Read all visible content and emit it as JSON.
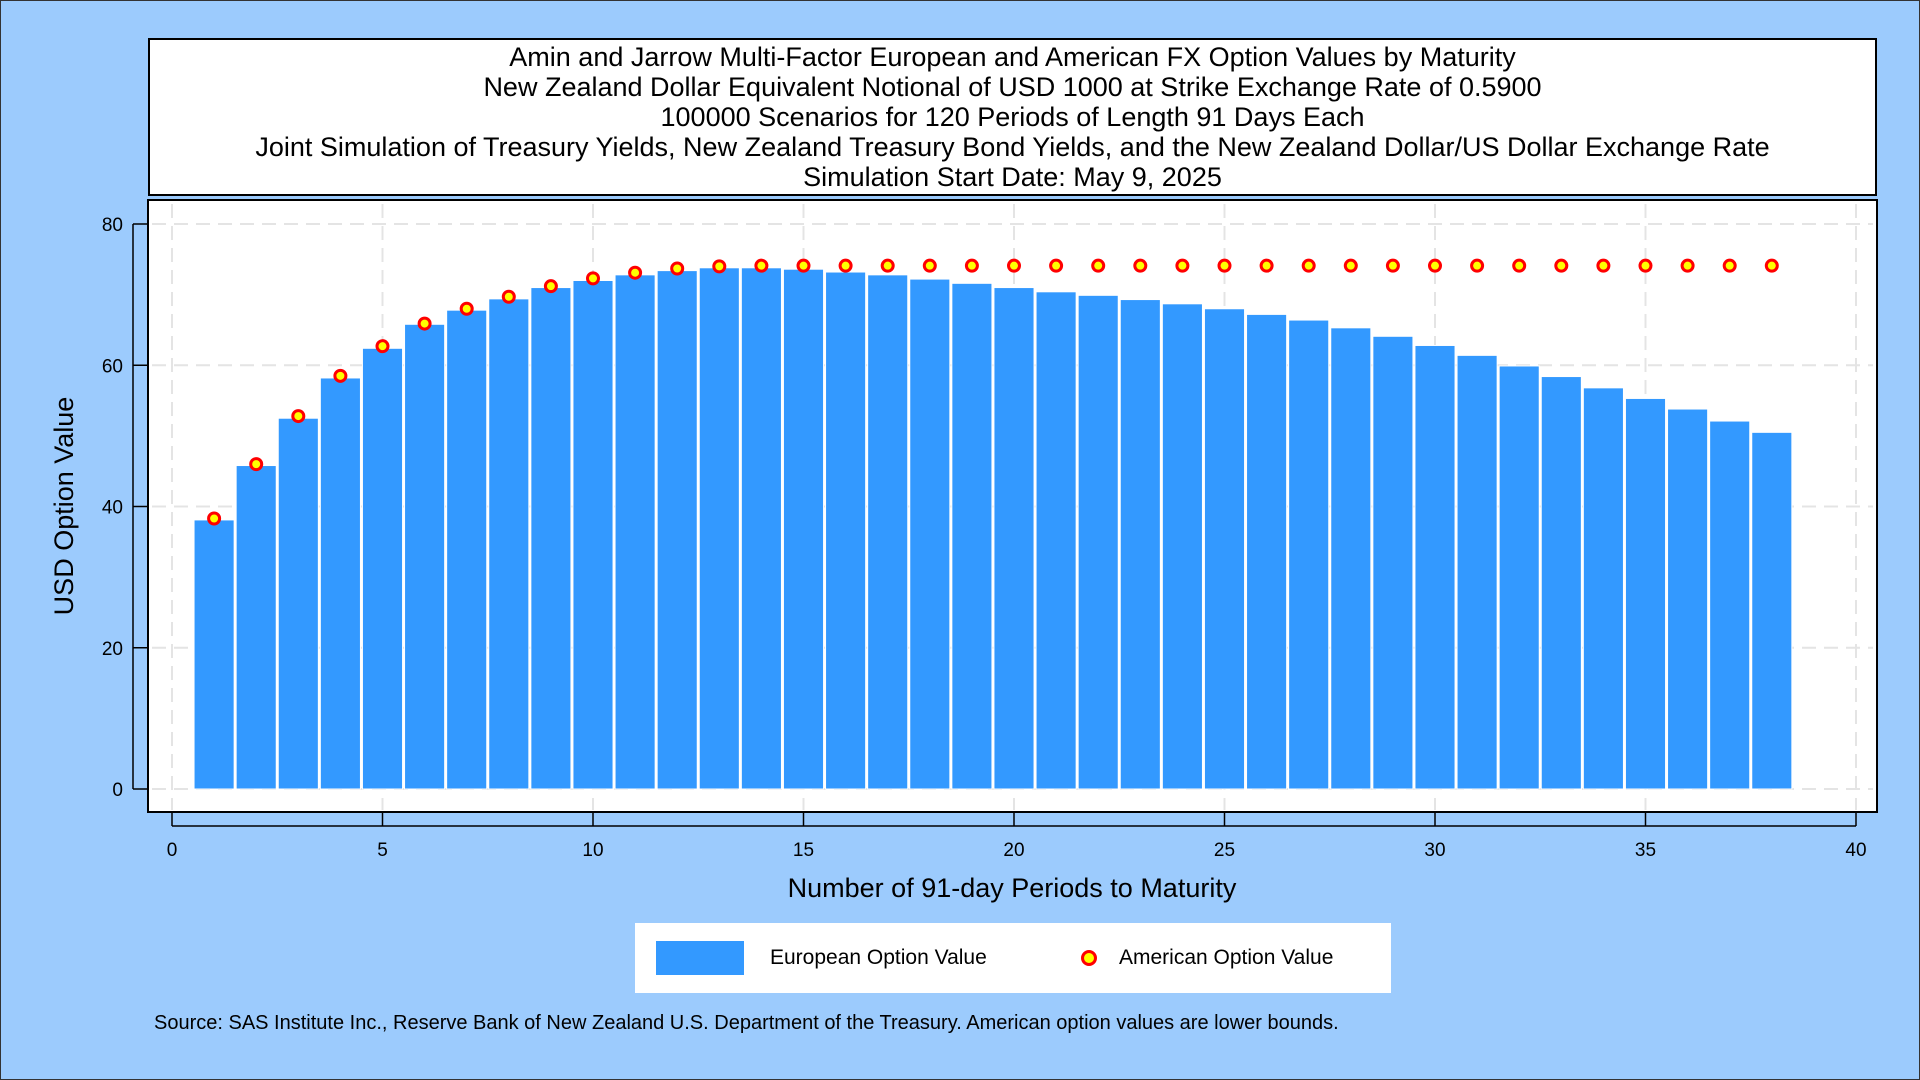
{
  "title_lines": [
    "Amin and Jarrow Multi-Factor European and American FX Option Values by Maturity",
    "New Zealand Dollar Equivalent Notional of USD 1000 at Strike Exchange Rate of  0.5900",
    "100000 Scenarios for 120 Periods of Length 91 Days Each",
    "Joint Simulation of Treasury Yields, New Zealand Treasury Bond Yields, and the New Zealand Dollar/US Dollar Exchange Rate",
    "Simulation Start Date: May 9, 2025"
  ],
  "source_note": "Source: SAS Institute Inc., Reserve Bank of New Zealand U.S. Department of the Treasury. American option values are lower bounds.",
  "legend": {
    "european": "European Option Value",
    "american": "American Option Value"
  },
  "colors": {
    "background": "#9ccbfd",
    "bar": "#3399ff",
    "marker_fill": "#ffff00",
    "marker_edge": "#ff0000"
  },
  "chart_data": {
    "type": "bar",
    "xlabel": "Number of 91-day Periods to Maturity",
    "ylabel": "USD Option Value",
    "xlim": [
      0,
      40
    ],
    "ylim": [
      0,
      80
    ],
    "xticks": [
      0,
      5,
      10,
      15,
      20,
      25,
      30,
      35,
      40
    ],
    "yticks": [
      0,
      20,
      40,
      60,
      80
    ],
    "grid": true,
    "legend_position": "bottom",
    "x": [
      1,
      2,
      3,
      4,
      5,
      6,
      7,
      8,
      9,
      10,
      11,
      12,
      13,
      14,
      15,
      16,
      17,
      18,
      19,
      20,
      21,
      22,
      23,
      24,
      25,
      26,
      27,
      28,
      29,
      30,
      31,
      32,
      33,
      34,
      35,
      36,
      37,
      38
    ],
    "series": [
      {
        "name": "European Option Value",
        "type": "bar",
        "values": [
          38.1,
          45.8,
          52.5,
          58.2,
          62.4,
          65.8,
          67.8,
          69.4,
          71.0,
          72.0,
          72.8,
          73.4,
          73.8,
          73.8,
          73.6,
          73.2,
          72.8,
          72.2,
          71.6,
          71.0,
          70.4,
          69.9,
          69.3,
          68.7,
          68.0,
          67.2,
          66.4,
          65.3,
          64.1,
          62.8,
          61.4,
          59.9,
          58.4,
          56.8,
          55.3,
          53.8,
          52.1,
          50.5
        ]
      },
      {
        "name": "American Option Value",
        "type": "scatter",
        "values": [
          38.3,
          46.0,
          52.8,
          58.5,
          62.7,
          65.9,
          68.0,
          69.7,
          71.2,
          72.3,
          73.1,
          73.7,
          74.0,
          74.1,
          74.1,
          74.1,
          74.1,
          74.1,
          74.1,
          74.1,
          74.1,
          74.1,
          74.1,
          74.1,
          74.1,
          74.1,
          74.1,
          74.1,
          74.1,
          74.1,
          74.1,
          74.1,
          74.1,
          74.1,
          74.1,
          74.1,
          74.1,
          74.1
        ]
      }
    ]
  }
}
